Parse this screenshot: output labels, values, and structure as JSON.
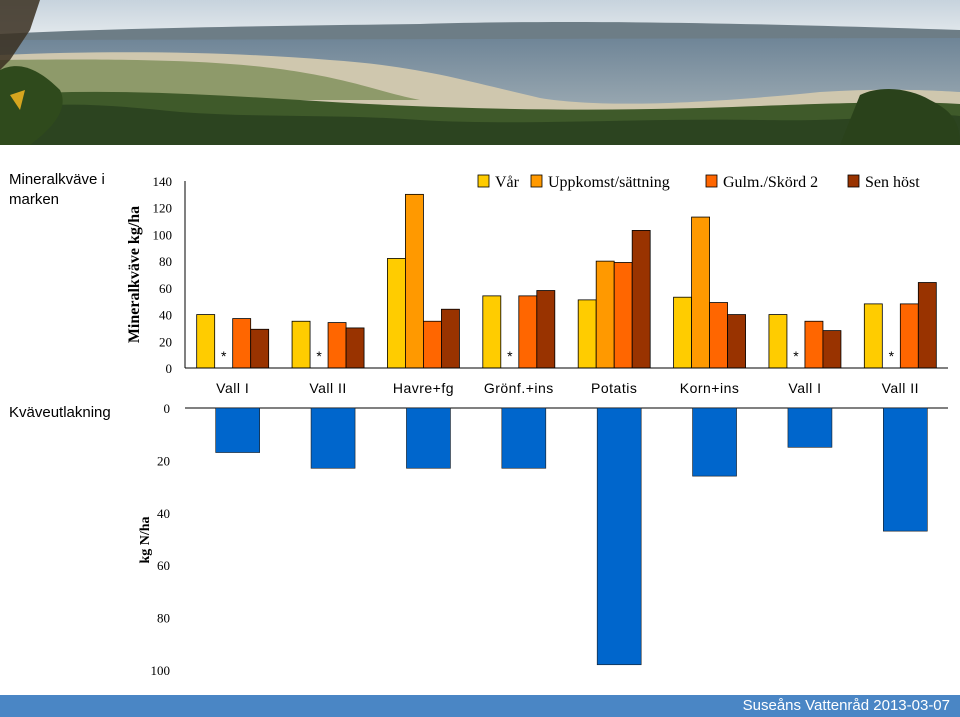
{
  "side_labels": {
    "top": "Mineralkväve i marken",
    "bottom": "Kväveutlakning"
  },
  "footer": "Suseåns Vattenråd 2013-03-07",
  "chart_data": [
    {
      "type": "bar",
      "ylabel": "Mineralkväve kg/ha",
      "ylim": [
        0,
        140
      ],
      "yticks": [
        "0",
        "20",
        "40",
        "60",
        "80",
        "100",
        "120",
        "140"
      ],
      "categories": [
        "Vall I",
        "Vall II",
        "Havre+fg",
        "Grönf.+ins",
        "Potatis",
        "Korn+ins",
        "Vall I",
        "Vall II"
      ],
      "legend_position": "top-right",
      "series": [
        {
          "name": "Vår",
          "color": "#ffcc00",
          "values": [
            40,
            35,
            82,
            54,
            51,
            53,
            40,
            48
          ]
        },
        {
          "name": "Uppkomst/sättning",
          "color": "#ff9900",
          "values": [
            null,
            null,
            130,
            null,
            80,
            113,
            null,
            null
          ]
        },
        {
          "name": "Gulm./Skörd 2",
          "color": "#ff6600",
          "values": [
            37,
            34,
            35,
            54,
            79,
            49,
            35,
            48
          ]
        },
        {
          "name": "Sen höst",
          "color": "#993300",
          "values": [
            29,
            30,
            44,
            58,
            103,
            40,
            28,
            64
          ]
        }
      ],
      "missing_marker": "*"
    },
    {
      "type": "bar",
      "ylabel": "kg N/ha",
      "ylim": [
        0,
        100
      ],
      "inverted": true,
      "yticks": [
        "0",
        "20",
        "40",
        "60",
        "80",
        "100"
      ],
      "color": "#0066cc",
      "values": [
        17,
        23,
        23,
        23,
        98,
        26,
        15,
        47
      ]
    }
  ]
}
